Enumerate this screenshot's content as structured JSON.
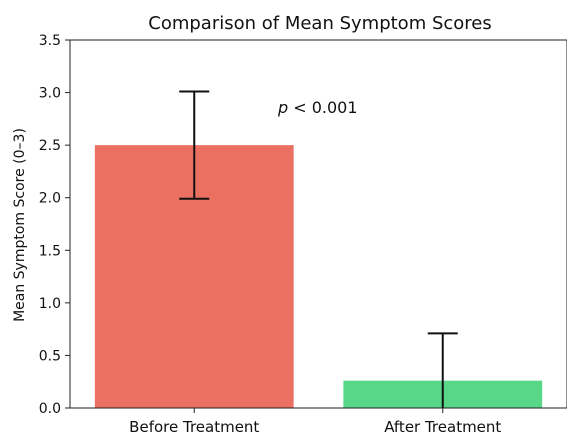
{
  "chart_data": {
    "type": "bar",
    "title": "Comparison of Mean Symptom Scores",
    "xlabel": "",
    "ylabel": "Mean Symptom Score (0–3)",
    "categories": [
      "Before Treatment",
      "After Treatment"
    ],
    "values": [
      2.5,
      0.26
    ],
    "error_low": [
      1.99,
      0.0
    ],
    "error_high": [
      3.01,
      0.71
    ],
    "colors": [
      "#eb7062",
      "#59d789"
    ],
    "ylim": [
      0,
      3.5
    ],
    "yticks": [
      "0.0",
      "0.5",
      "1.0",
      "1.5",
      "2.0",
      "2.5",
      "3.0",
      "3.5"
    ],
    "grid": false,
    "annotation": {
      "italic_part": "p",
      "rest": " < 0.001"
    }
  }
}
